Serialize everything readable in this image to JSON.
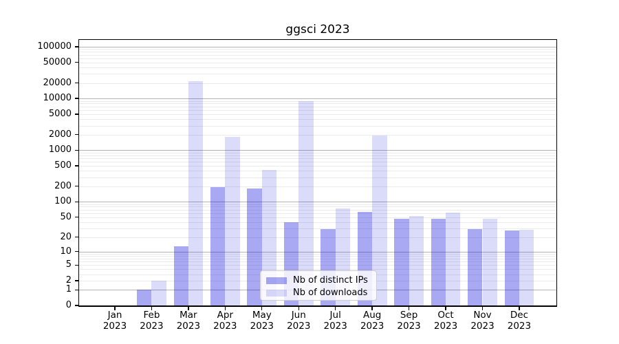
{
  "title": "ggsci 2023",
  "chart_data": {
    "type": "bar",
    "title": "ggsci 2023",
    "y_scale": "log10(1+x)",
    "grid": "major+minor horizontal",
    "background_color": "#ffffff",
    "categories": [
      "Jan",
      "Feb",
      "Mar",
      "Apr",
      "May",
      "Jun",
      "Jul",
      "Aug",
      "Sep",
      "Oct",
      "Nov",
      "Dec"
    ],
    "x_tick_year_line": "2023",
    "series": [
      {
        "name": "Nb of distinct IPs",
        "color_hex": "#0000dc",
        "alpha": 0.34,
        "values": [
          0,
          1,
          13,
          190,
          180,
          40,
          29,
          64,
          47,
          47,
          29,
          27
        ]
      },
      {
        "name": "Nb of downloads",
        "color_hex": "#0000dc",
        "alpha": 0.14,
        "values": [
          0,
          2,
          21500,
          1800,
          420,
          8800,
          75,
          1900,
          53,
          62,
          46,
          28
        ]
      }
    ],
    "y_ticks": [
      100000,
      50000,
      20000,
      10000,
      5000,
      2000,
      1000,
      500,
      200,
      100,
      50,
      20,
      10,
      5,
      2,
      1,
      0
    ],
    "ylim_top_approx": 140000,
    "legend_position": "lower center",
    "major_grid_color": "#b4b4b4",
    "minor_grid_color": "#ebebeb"
  }
}
